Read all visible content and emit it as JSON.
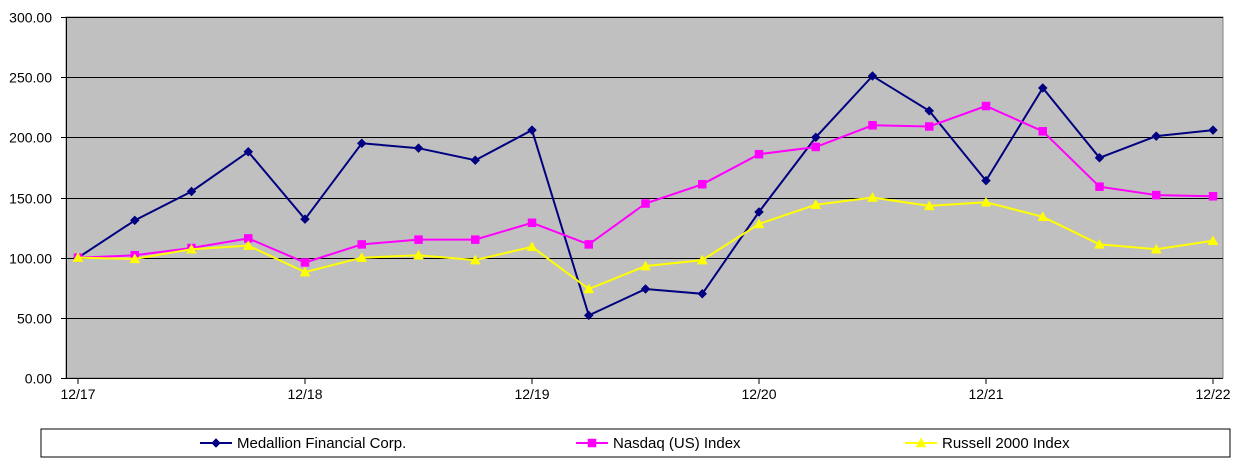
{
  "chart_data": {
    "type": "line",
    "title": "",
    "xlabel": "",
    "ylabel": "",
    "ylim": [
      0,
      300
    ],
    "y_ticks": [
      "0.00",
      "50.00",
      "100.00",
      "150.00",
      "200.00",
      "250.00",
      "300.00"
    ],
    "y_tick_values": [
      0,
      50,
      100,
      150,
      200,
      250,
      300
    ],
    "x_tick_labels": [
      "12/17",
      "12/18",
      "12/19",
      "12/20",
      "12/21",
      "12/22"
    ],
    "x_tick_positions": [
      0,
      4,
      8,
      12,
      16,
      20
    ],
    "x": [
      0,
      1,
      2,
      3,
      4,
      5,
      6,
      7,
      8,
      9,
      10,
      11,
      12,
      13,
      14,
      15,
      16,
      17,
      18,
      19,
      20
    ],
    "grid": "horizontal",
    "plot_background": "#c0c0c0",
    "legend_position": "bottom",
    "series": [
      {
        "name": "Medallion Financial Corp.",
        "color": "#000080",
        "marker": "diamond",
        "values": [
          100,
          131,
          155,
          188,
          132,
          195,
          191,
          181,
          206,
          52,
          74,
          70,
          138,
          200,
          251,
          222,
          164,
          241,
          183,
          201,
          206
        ]
      },
      {
        "name": "Nasdaq (US) Index",
        "color": "#ff00ff",
        "marker": "square",
        "values": [
          100,
          102,
          108,
          116,
          96,
          111,
          115,
          115,
          129,
          111,
          145,
          161,
          186,
          192,
          210,
          209,
          226,
          205,
          159,
          152,
          151
        ]
      },
      {
        "name": "Russell 2000 Index",
        "color": "#ffff00",
        "marker": "triangle",
        "values": [
          100,
          99,
          107,
          110,
          88,
          100,
          102,
          98,
          109,
          74,
          93,
          98,
          128,
          144,
          150,
          143,
          146,
          134,
          111,
          107,
          114
        ]
      }
    ]
  }
}
